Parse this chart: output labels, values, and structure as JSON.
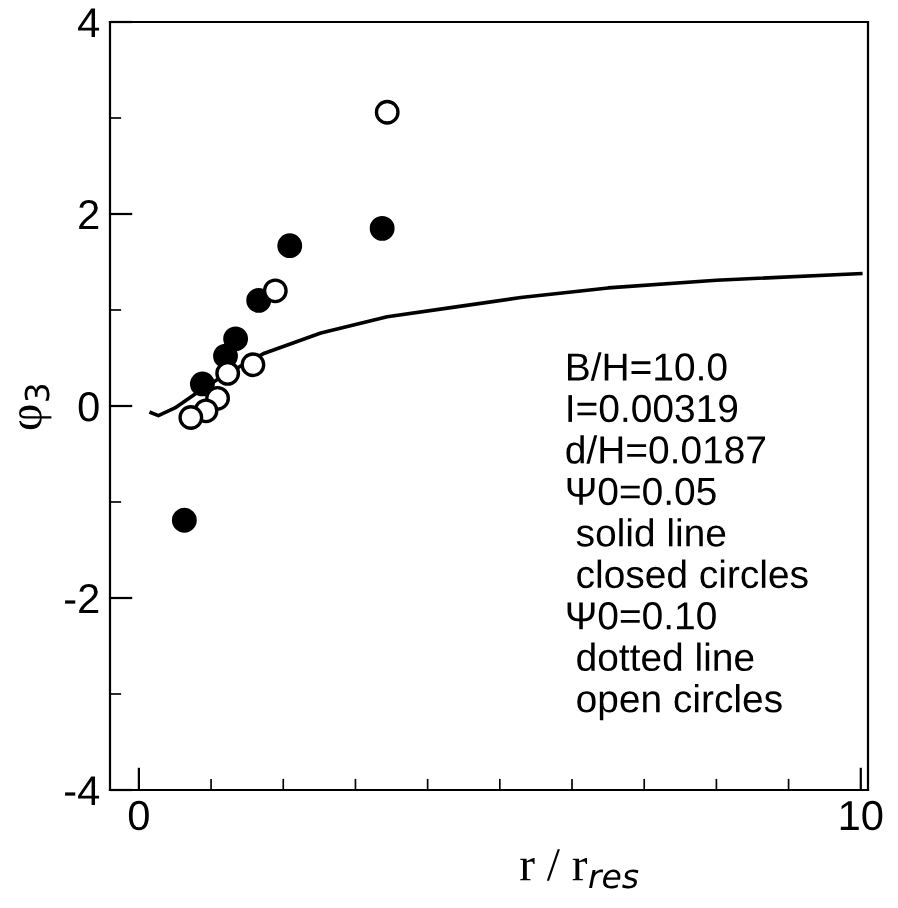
{
  "chart_data": {
    "type": "scatter",
    "xlabel": "r / r$_{res}$",
    "ylabel": "φ$_{3}$",
    "xlim": [
      -0.4,
      10.1
    ],
    "ylim": [
      -4,
      4
    ],
    "xticks": [
      0,
      10
    ],
    "yticks": [
      -4,
      -2,
      0,
      2,
      4
    ],
    "grid": false,
    "legend": false,
    "series": [
      {
        "type": "line",
        "color": "#000000",
        "line_style": "solid",
        "marker": "none",
        "x": [
          0.17,
          0.27,
          0.5,
          0.77,
          1.2,
          1.74,
          2.52,
          3.44,
          4.37,
          5.29,
          6.5,
          8,
          10
        ],
        "values": [
          -0.07,
          -0.1,
          -0.02,
          0.12,
          0.33,
          0.55,
          0.76,
          0.93,
          1.03,
          1.13,
          1.23,
          1.31,
          1.38
        ]
      },
      {
        "color": "#000000",
        "marker": "circle",
        "x": [
          0.63,
          0.88,
          1.2,
          1.34,
          1.66,
          2.09,
          3.37
        ],
        "values": [
          -1.19,
          0.23,
          0.52,
          0.7,
          1.1,
          1.67,
          1.85
        ]
      },
      {
        "color": "#ffffff",
        "marker": "circle",
        "x": [
          3.44,
          1.89,
          1.58,
          1.23,
          1.09,
          0.93,
          0.72
        ],
        "values": [
          3.06,
          1.2,
          0.43,
          0.34,
          0.08,
          -0.05,
          -0.12
        ]
      }
    ],
    "annotations": [
      "B/H=10.0",
      "I=0.00319",
      "d/H=0.0187",
      "Ψ0=0.05",
      " solid line",
      " closed circles",
      "Ψ0=0.10",
      " dotted line",
      " open circles"
    ]
  }
}
